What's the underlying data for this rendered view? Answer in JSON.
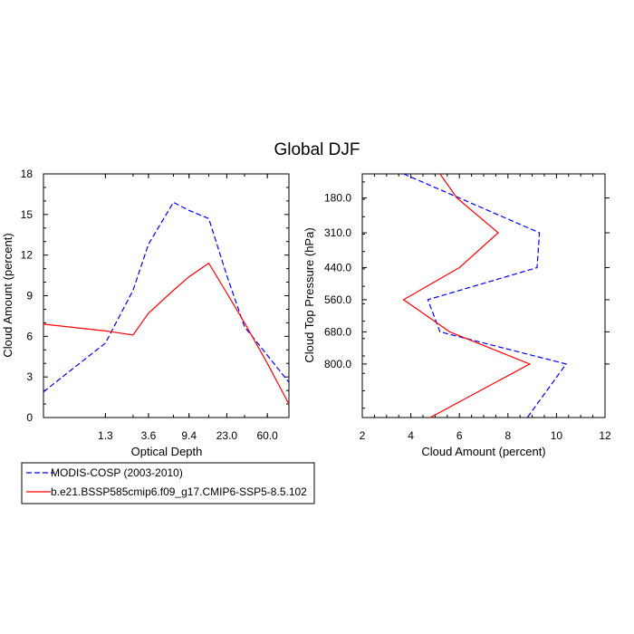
{
  "title": "Global DJF",
  "colors": {
    "modis": "#0000ff",
    "model": "#ff0000"
  },
  "legend": [
    {
      "label": "MODIS-COSP (2003-2010)",
      "color": "#0000ff",
      "dash": true
    },
    {
      "label": "b.e21.BSSP585cmip6.f09_g17.CMIP6-SSP5-8.5.102",
      "color": "#ff0000",
      "dash": false
    }
  ],
  "chart_data": [
    {
      "type": "line",
      "xlabel": "Optical Depth",
      "ylabel": "Cloud Amount (percent)",
      "x_tick_labels": [
        "1.3",
        "3.6",
        "9.4",
        "23.0",
        "60.0"
      ],
      "y_ticks": [
        0,
        3,
        6,
        9,
        12,
        15,
        18
      ],
      "ylim": [
        0,
        18
      ],
      "x": [
        0.3,
        1.3,
        2.5,
        3.6,
        6.5,
        9.4,
        15.0,
        23.0,
        35.0,
        60.0,
        100.0
      ],
      "series": [
        {
          "name": "MODIS-COSP (2003-2010)",
          "values": [
            1.9,
            5.5,
            9.4,
            12.8,
            15.9,
            15.3,
            14.7,
            10.5,
            6.7,
            4.6,
            2.6
          ]
        },
        {
          "name": "b.e21.BSSP585cmip6.f09_g17.CMIP6-SSP5-8.5.102",
          "values": [
            6.9,
            6.4,
            6.1,
            7.7,
            9.4,
            10.4,
            11.4,
            9.2,
            7.0,
            4.0,
            1.0
          ]
        }
      ]
    },
    {
      "type": "line",
      "xlabel": "Cloud Amount (percent)",
      "ylabel": "Cloud Top Pressure (hPa)",
      "x_ticks": [
        2,
        4,
        6,
        8,
        10,
        12
      ],
      "xlim": [
        2,
        12
      ],
      "y_tick_labels": [
        "180.0",
        "310.0",
        "440.0",
        "560.0",
        "680.0",
        "800.0"
      ],
      "y": [
        90.0,
        180.0,
        310.0,
        440.0,
        560.0,
        680.0,
        800.0,
        1000.0
      ],
      "series": [
        {
          "name": "MODIS-COSP (2003-2010)",
          "values": [
            3.7,
            6.0,
            9.3,
            9.2,
            4.7,
            5.2,
            10.4,
            8.8
          ]
        },
        {
          "name": "b.e21.BSSP585cmip6.f09_g17.CMIP6-SSP5-8.5.102",
          "values": [
            5.2,
            5.9,
            7.6,
            6.0,
            3.7,
            5.6,
            8.9,
            4.8
          ]
        }
      ]
    }
  ]
}
